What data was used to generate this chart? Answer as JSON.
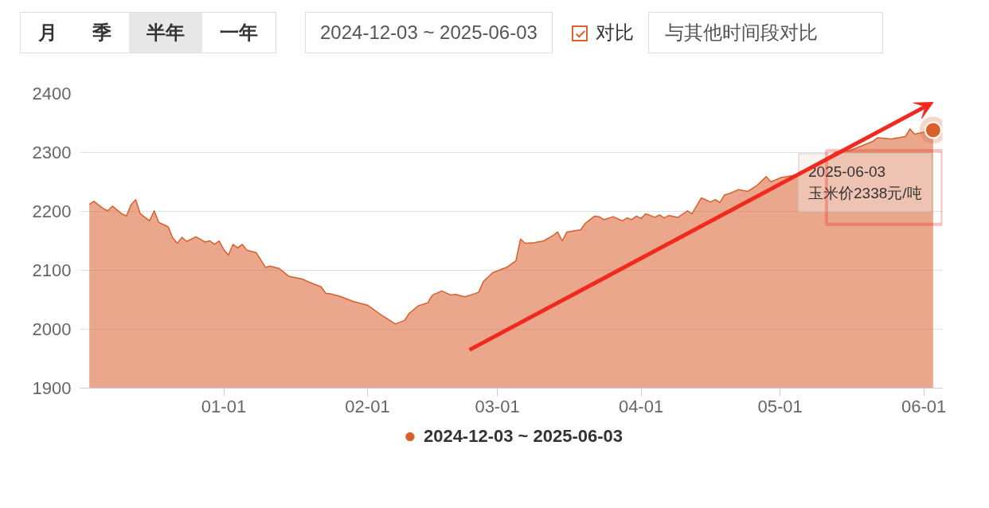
{
  "chart_data": {
    "type": "area",
    "annotations": [
      "月",
      "季",
      "半年",
      "一年",
      "2024-12-03 ~ 2025-06-03",
      "对比",
      "与其他时间段对比",
      {
        "text": "2025-06-03\n玉米价2338元/吨",
        "x": "2025-06-03",
        "y": 2338
      }
    ],
    "x": [
      "2024-12-03",
      "2024-12-04",
      "2024-12-06",
      "2024-12-07",
      "2024-12-08",
      "2024-12-10",
      "2024-12-11",
      "2024-12-12",
      "2024-12-13",
      "2024-12-14",
      "2024-12-16",
      "2024-12-17",
      "2024-12-18",
      "2024-12-20",
      "2024-12-21",
      "2024-12-22",
      "2024-12-23",
      "2024-12-24",
      "2024-12-26",
      "2024-12-28",
      "2024-12-29",
      "2024-12-30",
      "2024-12-31",
      "2025-01-01",
      "2025-01-02",
      "2025-01-03",
      "2025-01-04",
      "2025-01-05",
      "2025-01-06",
      "2025-01-08",
      "2025-01-10",
      "2025-01-11",
      "2025-01-13",
      "2025-01-15",
      "2025-01-18",
      "2025-01-20",
      "2025-01-22",
      "2025-01-23",
      "2025-01-24",
      "2025-01-26",
      "2025-01-29",
      "2025-02-01",
      "2025-02-04",
      "2025-02-07",
      "2025-02-09",
      "2025-02-10",
      "2025-02-12",
      "2025-02-14",
      "2025-02-15",
      "2025-02-17",
      "2025-02-19",
      "2025-02-20",
      "2025-02-22",
      "2025-02-24",
      "2025-02-25",
      "2025-02-26",
      "2025-02-28",
      "2025-03-03",
      "2025-03-05",
      "2025-03-06",
      "2025-03-07",
      "2025-03-09",
      "2025-03-11",
      "2025-03-13",
      "2025-03-14",
      "2025-03-15",
      "2025-03-16",
      "2025-03-19",
      "2025-03-20",
      "2025-03-22",
      "2025-03-23",
      "2025-03-24",
      "2025-03-26",
      "2025-03-28",
      "2025-03-29",
      "2025-03-30",
      "2025-03-31",
      "2025-04-01",
      "2025-04-02",
      "2025-04-04",
      "2025-04-05",
      "2025-04-06",
      "2025-04-07",
      "2025-04-09",
      "2025-04-11",
      "2025-04-12",
      "2025-04-14",
      "2025-04-16",
      "2025-04-17",
      "2025-04-18",
      "2025-04-19",
      "2025-04-20",
      "2025-04-22",
      "2025-04-24",
      "2025-04-26",
      "2025-04-28",
      "2025-04-29",
      "2025-05-01",
      "2025-05-04",
      "2025-05-09",
      "2025-05-13",
      "2025-05-16",
      "2025-05-21",
      "2025-05-22",
      "2025-05-25",
      "2025-05-28",
      "2025-05-29",
      "2025-05-30",
      "2025-06-03"
    ],
    "series": [
      {
        "name": "2024-12-03 ~ 2025-06-03",
        "color": "#d95f2b",
        "values": [
          2212,
          2217,
          2205,
          2201,
          2209,
          2196,
          2192,
          2211,
          2220,
          2196,
          2184,
          2201,
          2181,
          2174,
          2155,
          2146,
          2156,
          2149,
          2157,
          2148,
          2150,
          2144,
          2150,
          2135,
          2126,
          2144,
          2138,
          2144,
          2134,
          2130,
          2105,
          2107,
          2103,
          2090,
          2085,
          2078,
          2072,
          2061,
          2060,
          2056,
          2047,
          2041,
          2024,
          2009,
          2015,
          2027,
          2040,
          2045,
          2058,
          2065,
          2058,
          2059,
          2055,
          2060,
          2063,
          2081,
          2096,
          2105,
          2116,
          2153,
          2146,
          2147,
          2150,
          2159,
          2165,
          2150,
          2165,
          2169,
          2180,
          2192,
          2191,
          2186,
          2191,
          2184,
          2189,
          2186,
          2192,
          2188,
          2196,
          2190,
          2194,
          2189,
          2193,
          2190,
          2201,
          2196,
          2223,
          2216,
          2220,
          2215,
          2228,
          2230,
          2237,
          2234,
          2244,
          2259,
          2250,
          2257,
          2261,
          2281,
          2301,
          2303,
          2319,
          2325,
          2323,
          2327,
          2340,
          2331,
          2338
        ]
      }
    ],
    "xlim": [
      "2024-12-01",
      "2025-06-05"
    ],
    "xticks": [
      {
        "value": "2025-01-01",
        "label": "01-01"
      },
      {
        "value": "2025-02-01",
        "label": "02-01"
      },
      {
        "value": "2025-03-01",
        "label": "03-01"
      },
      {
        "value": "2025-04-01",
        "label": "04-01"
      },
      {
        "value": "2025-05-01",
        "label": "05-01"
      },
      {
        "value": "2025-06-01",
        "label": "06-01"
      }
    ],
    "ylim": [
      1900,
      2400
    ],
    "yticks": [
      1900,
      2000,
      2100,
      2200,
      2300,
      2400
    ],
    "grid": "y",
    "legend": "bottom"
  }
}
